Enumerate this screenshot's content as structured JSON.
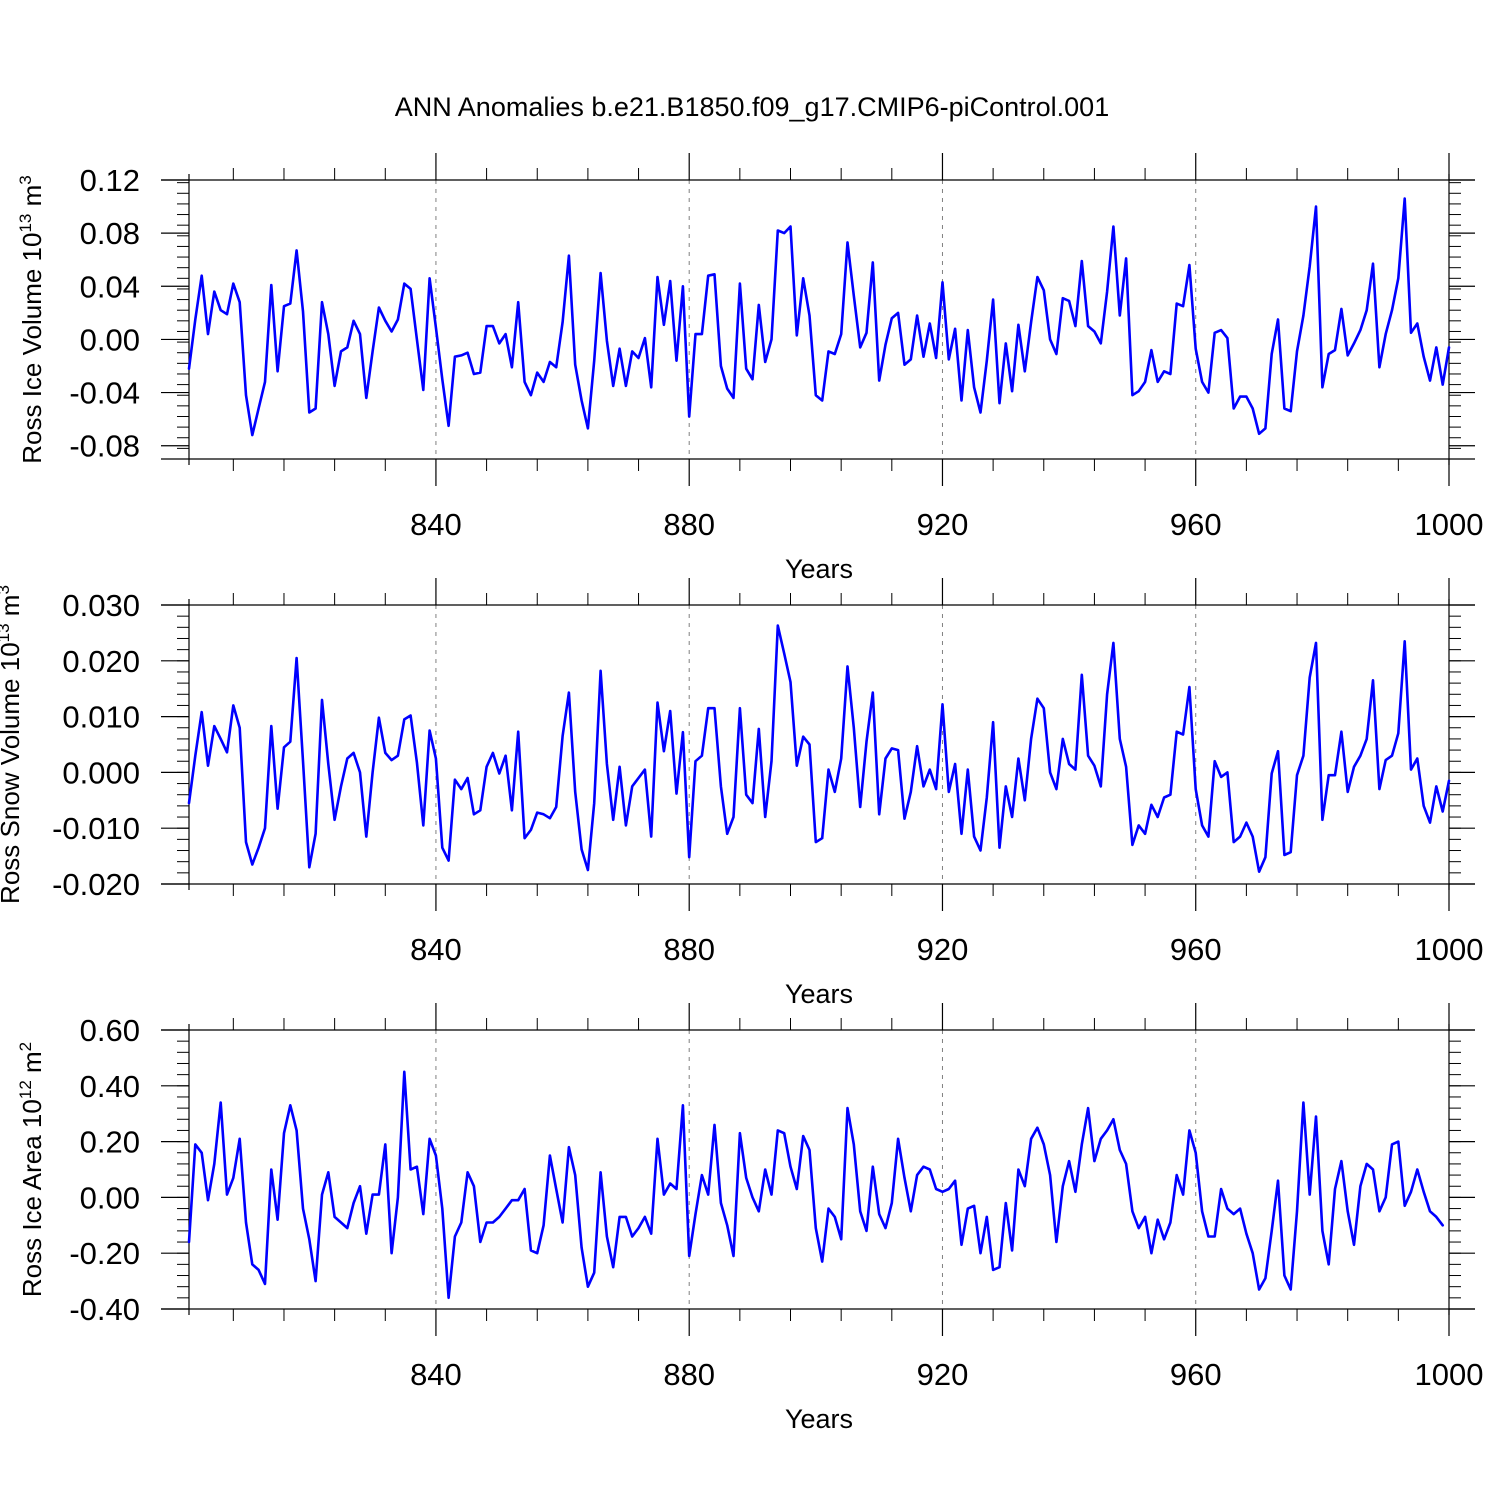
{
  "page": {
    "title": "ANN Anomalies b.e21.B1850.f09_g17.CMIP6-piControl.001"
  },
  "style": {
    "line_color": "#0000ff",
    "axis_color": "#000000",
    "grid_color": "#808080"
  },
  "chart_data": [
    {
      "type": "line",
      "title": "ANN Anomalies b.e21.B1850.f09_g17.CMIP6-piControl.001",
      "xlabel": "Years",
      "ylabel_main": "Ross Ice Volume 10",
      "ylabel_exp": "13",
      "ylabel_unit": " m",
      "ylabel_unit_exp": "3",
      "xlim": [
        801,
        1000
      ],
      "ylim": [
        -0.09,
        0.12
      ],
      "yticks": [
        0.12,
        0.08,
        0.04,
        0.0,
        -0.04,
        -0.08
      ],
      "ytick_labels": [
        "0.12",
        "0.08",
        "0.04",
        "0.00",
        "-0.04",
        "-0.08"
      ],
      "xticks": [
        840,
        880,
        920,
        960,
        1000
      ],
      "xtick_labels": [
        "840",
        "880",
        "920",
        "960",
        "1000"
      ],
      "grid": "vertical dashed at major x ticks",
      "x_start": 801,
      "values": [
        -0.022,
        0.015,
        0.048,
        0.004,
        0.036,
        0.022,
        0.019,
        0.042,
        0.028,
        -0.042,
        -0.072,
        -0.052,
        -0.032,
        0.041,
        -0.024,
        0.025,
        0.027,
        0.067,
        0.021,
        -0.055,
        -0.052,
        0.028,
        0.004,
        -0.035,
        -0.009,
        -0.006,
        0.014,
        0.004,
        -0.044,
        -0.009,
        0.024,
        0.014,
        0.006,
        0.015,
        0.042,
        0.038,
        0.0,
        -0.038,
        0.046,
        0.009,
        -0.03,
        -0.065,
        -0.013,
        -0.012,
        -0.01,
        -0.026,
        -0.025,
        0.01,
        0.01,
        -0.003,
        0.004,
        -0.021,
        0.028,
        -0.032,
        -0.042,
        -0.025,
        -0.032,
        -0.017,
        -0.021,
        0.013,
        0.063,
        -0.019,
        -0.046,
        -0.067,
        -0.016,
        0.05,
        -0.001,
        -0.035,
        -0.007,
        -0.035,
        -0.009,
        -0.014,
        0.001,
        -0.036,
        0.047,
        0.011,
        0.044,
        -0.016,
        0.04,
        -0.058,
        0.004,
        0.004,
        0.048,
        0.049,
        -0.02,
        -0.037,
        -0.044,
        0.042,
        -0.022,
        -0.03,
        0.026,
        -0.017,
        0.0,
        0.082,
        0.08,
        0.085,
        0.003,
        0.046,
        0.018,
        -0.042,
        -0.046,
        -0.009,
        -0.011,
        0.004,
        0.073,
        0.033,
        -0.006,
        0.005,
        0.058,
        -0.031,
        -0.004,
        0.016,
        0.02,
        -0.019,
        -0.015,
        0.018,
        -0.013,
        0.012,
        -0.014,
        0.043,
        -0.015,
        0.008,
        -0.046,
        0.007,
        -0.036,
        -0.055,
        -0.016,
        0.03,
        -0.048,
        -0.003,
        -0.039,
        0.011,
        -0.024,
        0.013,
        0.047,
        0.037,
        0.0,
        -0.011,
        0.031,
        0.029,
        0.01,
        0.059,
        0.01,
        0.006,
        -0.003,
        0.036,
        0.085,
        0.018,
        0.061,
        -0.042,
        -0.039,
        -0.032,
        -0.008,
        -0.032,
        -0.024,
        -0.026,
        0.027,
        0.025,
        0.056,
        -0.007,
        -0.032,
        -0.04,
        0.005,
        0.007,
        0.001,
        -0.052,
        -0.043,
        -0.043,
        -0.052,
        -0.071,
        -0.067,
        -0.011,
        0.015,
        -0.052,
        -0.054,
        -0.009,
        0.018,
        0.055,
        0.1,
        -0.036,
        -0.011,
        -0.008,
        0.023,
        -0.012,
        -0.003,
        0.007,
        0.022,
        0.057,
        -0.021,
        0.004,
        0.022,
        0.046,
        0.106,
        0.005,
        0.012,
        -0.013,
        -0.031,
        -0.006,
        -0.034,
        -0.006
      ]
    },
    {
      "type": "line",
      "xlabel": "Years",
      "ylabel_main": "Ross Snow Volume 10",
      "ylabel_exp": "13",
      "ylabel_unit": " m",
      "ylabel_unit_exp": "3",
      "xlim": [
        801,
        1000
      ],
      "ylim": [
        -0.02,
        0.03
      ],
      "yticks": [
        0.03,
        0.02,
        0.01,
        0.0,
        -0.01,
        -0.02
      ],
      "ytick_labels": [
        "0.030",
        "0.020",
        "0.010",
        "0.000",
        "-0.010",
        "-0.020"
      ],
      "xticks": [
        840,
        880,
        920,
        960,
        1000
      ],
      "xtick_labels": [
        "840",
        "880",
        "920",
        "960",
        "1000"
      ],
      "grid": "vertical dashed at major x ticks",
      "x_start": 801,
      "values": [
        -0.0055,
        0.003,
        0.0108,
        0.0012,
        0.0083,
        0.006,
        0.0036,
        0.012,
        0.008,
        -0.0125,
        -0.0165,
        -0.0135,
        -0.01,
        0.0083,
        -0.0065,
        0.0045,
        0.0055,
        0.0205,
        0.002,
        -0.017,
        -0.011,
        0.013,
        0.0015,
        -0.0085,
        -0.0025,
        0.0025,
        0.0035,
        0.0,
        -0.0115,
        0.0,
        0.0098,
        0.0035,
        0.0022,
        0.003,
        0.0095,
        0.0102,
        0.0018,
        -0.0095,
        0.0075,
        0.0025,
        -0.0135,
        -0.0158,
        -0.0013,
        -0.003,
        -0.001,
        -0.0075,
        -0.0068,
        0.001,
        0.0035,
        -0.0002,
        0.003,
        -0.0068,
        0.0073,
        -0.0118,
        -0.0103,
        -0.0072,
        -0.0075,
        -0.0082,
        -0.0062,
        0.0065,
        0.0143,
        -0.0035,
        -0.0138,
        -0.0175,
        -0.0055,
        0.0182,
        0.0015,
        -0.0085,
        0.001,
        -0.0095,
        -0.0025,
        -0.001,
        0.0005,
        -0.0115,
        0.0125,
        0.0038,
        0.011,
        -0.0038,
        0.0072,
        -0.0152,
        0.002,
        0.003,
        0.0115,
        0.0115,
        -0.0025,
        -0.011,
        -0.008,
        0.0115,
        -0.004,
        -0.0055,
        0.0078,
        -0.008,
        0.002,
        0.0263,
        0.0213,
        0.0162,
        0.0012,
        0.0064,
        0.005,
        -0.0125,
        -0.0118,
        0.0005,
        -0.0035,
        0.0025,
        0.019,
        0.008,
        -0.0062,
        0.0055,
        0.0143,
        -0.0075,
        0.0025,
        0.0043,
        0.004,
        -0.0083,
        -0.0035,
        0.0047,
        -0.0025,
        0.0005,
        -0.003,
        0.0122,
        -0.0035,
        0.0015,
        -0.011,
        0.0005,
        -0.0115,
        -0.014,
        -0.0045,
        0.009,
        -0.0135,
        -0.0025,
        -0.008,
        0.0025,
        -0.005,
        0.006,
        0.0132,
        0.0115,
        0.0,
        -0.003,
        0.006,
        0.0015,
        0.0005,
        0.0175,
        0.003,
        0.0012,
        -0.0025,
        0.014,
        0.0232,
        0.006,
        0.001,
        -0.013,
        -0.0095,
        -0.011,
        -0.0058,
        -0.008,
        -0.0045,
        -0.004,
        0.0073,
        0.0068,
        0.0153,
        -0.003,
        -0.0095,
        -0.0115,
        0.002,
        -0.0008,
        0.0,
        -0.0125,
        -0.0115,
        -0.009,
        -0.0115,
        -0.0178,
        -0.0152,
        -0.0002,
        0.0038,
        -0.0148,
        -0.0143,
        -0.0005,
        0.003,
        0.017,
        0.0232,
        -0.0085,
        -0.0005,
        -0.0005,
        0.0073,
        -0.0035,
        0.001,
        0.003,
        0.006,
        0.0165,
        -0.003,
        0.0022,
        0.003,
        0.007,
        0.0235,
        0.0005,
        0.0025,
        -0.006,
        -0.009,
        -0.0025,
        -0.007,
        -0.0015
      ]
    },
    {
      "type": "line",
      "xlabel": "Years",
      "ylabel_main": "Ross Ice Area 10",
      "ylabel_exp": "12",
      "ylabel_unit": " m",
      "ylabel_unit_exp": "2",
      "xlim": [
        801,
        1000
      ],
      "ylim": [
        -0.4,
        0.6
      ],
      "yticks": [
        0.6,
        0.4,
        0.2,
        0.0,
        -0.2,
        -0.4
      ],
      "ytick_labels": [
        "0.60",
        "0.40",
        "0.20",
        "0.00",
        "-0.20",
        "-0.40"
      ],
      "xticks": [
        840,
        880,
        920,
        960,
        1000
      ],
      "xtick_labels": [
        "840",
        "880",
        "920",
        "960",
        "1000"
      ],
      "grid": "vertical dashed at major x ticks",
      "x_start": 801,
      "values": [
        -0.16,
        0.19,
        0.16,
        -0.01,
        0.12,
        0.34,
        0.01,
        0.07,
        0.21,
        -0.09,
        -0.24,
        -0.26,
        -0.31,
        0.1,
        -0.08,
        0.23,
        0.33,
        0.24,
        -0.04,
        -0.15,
        -0.3,
        0.01,
        0.09,
        -0.07,
        -0.09,
        -0.11,
        -0.02,
        0.04,
        -0.13,
        0.01,
        0.01,
        0.19,
        -0.2,
        0.0,
        0.45,
        0.1,
        0.11,
        -0.06,
        0.21,
        0.15,
        -0.04,
        -0.36,
        -0.14,
        -0.09,
        0.09,
        0.04,
        -0.16,
        -0.09,
        -0.09,
        -0.07,
        -0.04,
        -0.01,
        -0.01,
        0.03,
        -0.19,
        -0.2,
        -0.1,
        0.15,
        0.03,
        -0.09,
        0.18,
        0.08,
        -0.18,
        -0.32,
        -0.27,
        0.09,
        -0.14,
        -0.25,
        -0.07,
        -0.07,
        -0.14,
        -0.11,
        -0.07,
        -0.13,
        0.21,
        0.01,
        0.05,
        0.03,
        0.33,
        -0.21,
        -0.06,
        0.08,
        0.01,
        0.26,
        -0.02,
        -0.1,
        -0.21,
        0.23,
        0.07,
        0.0,
        -0.05,
        0.1,
        0.01,
        0.24,
        0.23,
        0.11,
        0.03,
        0.22,
        0.17,
        -0.11,
        -0.23,
        -0.04,
        -0.07,
        -0.15,
        0.32,
        0.19,
        -0.05,
        -0.12,
        0.11,
        -0.06,
        -0.11,
        -0.02,
        0.21,
        0.07,
        -0.05,
        0.08,
        0.11,
        0.1,
        0.03,
        0.02,
        0.03,
        0.06,
        -0.17,
        -0.04,
        -0.03,
        -0.2,
        -0.07,
        -0.26,
        -0.25,
        -0.02,
        -0.19,
        0.1,
        0.04,
        0.21,
        0.25,
        0.19,
        0.08,
        -0.16,
        0.04,
        0.13,
        0.02,
        0.19,
        0.32,
        0.13,
        0.21,
        0.24,
        0.28,
        0.17,
        0.12,
        -0.05,
        -0.11,
        -0.07,
        -0.2,
        -0.08,
        -0.15,
        -0.09,
        0.08,
        0.01,
        0.24,
        0.16,
        -0.05,
        -0.14,
        -0.14,
        0.03,
        -0.04,
        -0.06,
        -0.04,
        -0.13,
        -0.2,
        -0.33,
        -0.29,
        -0.12,
        0.06,
        -0.28,
        -0.33,
        -0.05,
        0.34,
        0.01,
        0.29,
        -0.12,
        -0.24,
        0.03,
        0.13,
        -0.05,
        -0.17,
        0.04,
        0.12,
        0.1,
        -0.05,
        0.0,
        0.19,
        0.2,
        -0.03,
        0.02,
        0.1,
        0.02,
        -0.05,
        -0.07,
        -0.1
      ]
    }
  ]
}
